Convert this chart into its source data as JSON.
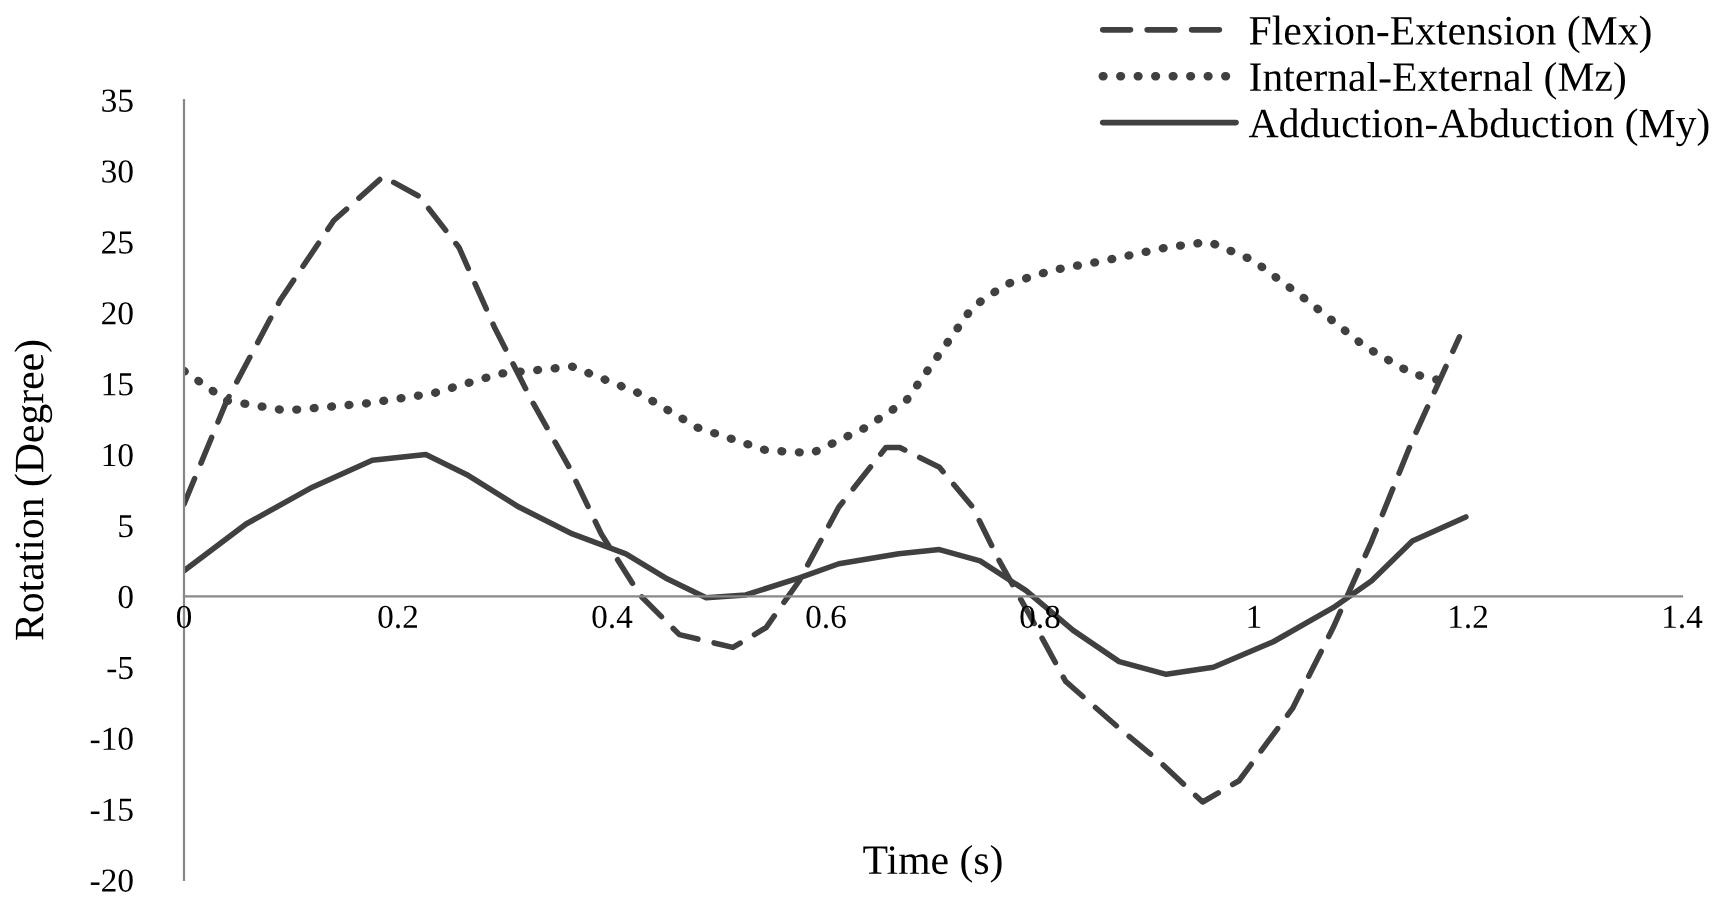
{
  "chart_data": {
    "type": "line",
    "xlabel": "Time (s)",
    "ylabel": "Rotation (Degree)",
    "xlim": [
      0,
      1.4
    ],
    "xticks": [
      0,
      0.2,
      0.4,
      0.6,
      0.8,
      1,
      1.2,
      1.4
    ],
    "ylim": [
      -20,
      35
    ],
    "yticks": [
      -20,
      -15,
      -10,
      -5,
      0,
      5,
      10,
      15,
      20,
      25,
      30,
      35
    ],
    "grid": false,
    "legend": "top right",
    "series": [
      {
        "name": "Flexion-Extension (Mx)",
        "color": "#404040",
        "line_style": "dashed",
        "x": [
          0,
          0.04,
          0.09,
          0.14,
          0.186,
          0.22,
          0.257,
          0.29,
          0.325,
          0.36,
          0.39,
          0.426,
          0.463,
          0.513,
          0.544,
          0.575,
          0.612,
          0.656,
          0.669,
          0.706,
          0.737,
          0.762,
          0.793,
          0.824,
          0.874,
          0.911,
          0.952,
          0.986,
          1.036,
          1.074,
          1.11,
          1.148,
          1.192
        ],
        "values": [
          6.5,
          13.8,
          20.9,
          26.5,
          29.6,
          28.2,
          24.6,
          19,
          13.8,
          9.1,
          4.4,
          0.1,
          -2.7,
          -3.6,
          -2.2,
          1.1,
          6.3,
          10.5,
          10.5,
          9.1,
          6.3,
          2.5,
          -1.7,
          -6,
          -9.3,
          -11.6,
          -14.5,
          -13,
          -7.9,
          -2.2,
          3.9,
          11,
          18.3
        ]
      },
      {
        "name": "Internal-External (Mz)",
        "color": "#404040",
        "line_style": "dotted",
        "x": [
          0,
          0.04,
          0.095,
          0.17,
          0.232,
          0.295,
          0.363,
          0.426,
          0.48,
          0.544,
          0.587,
          0.637,
          0.675,
          0.706,
          0.737,
          0.768,
          0.812,
          0.862,
          0.918,
          0.958,
          0.999,
          1.049,
          1.104,
          1.148,
          1.186
        ],
        "values": [
          15.9,
          13.8,
          13.1,
          13.6,
          14.3,
          15.7,
          16.2,
          14.3,
          11.9,
          10.3,
          10.1,
          11.9,
          13.8,
          17.1,
          20.4,
          22,
          23,
          23.7,
          24.6,
          25,
          23.7,
          20.9,
          17.6,
          15.7,
          15
        ]
      },
      {
        "name": "Adduction-Abduction (My)",
        "color": "#404040",
        "line_style": "solid",
        "x": [
          0,
          0.058,
          0.12,
          0.176,
          0.226,
          0.264,
          0.313,
          0.363,
          0.413,
          0.45,
          0.488,
          0.525,
          0.575,
          0.612,
          0.668,
          0.706,
          0.744,
          0.787,
          0.831,
          0.874,
          0.918,
          0.962,
          1.018,
          1.074,
          1.11,
          1.148,
          1.198
        ],
        "values": [
          1.8,
          5.1,
          7.7,
          9.6,
          10,
          8.6,
          6.3,
          4.4,
          3,
          1.3,
          -0.1,
          0.1,
          1.3,
          2.3,
          3,
          3.3,
          2.5,
          0.4,
          -2.4,
          -4.6,
          -5.5,
          -5,
          -3.2,
          -0.8,
          1.1,
          3.9,
          5.6
        ]
      }
    ]
  }
}
